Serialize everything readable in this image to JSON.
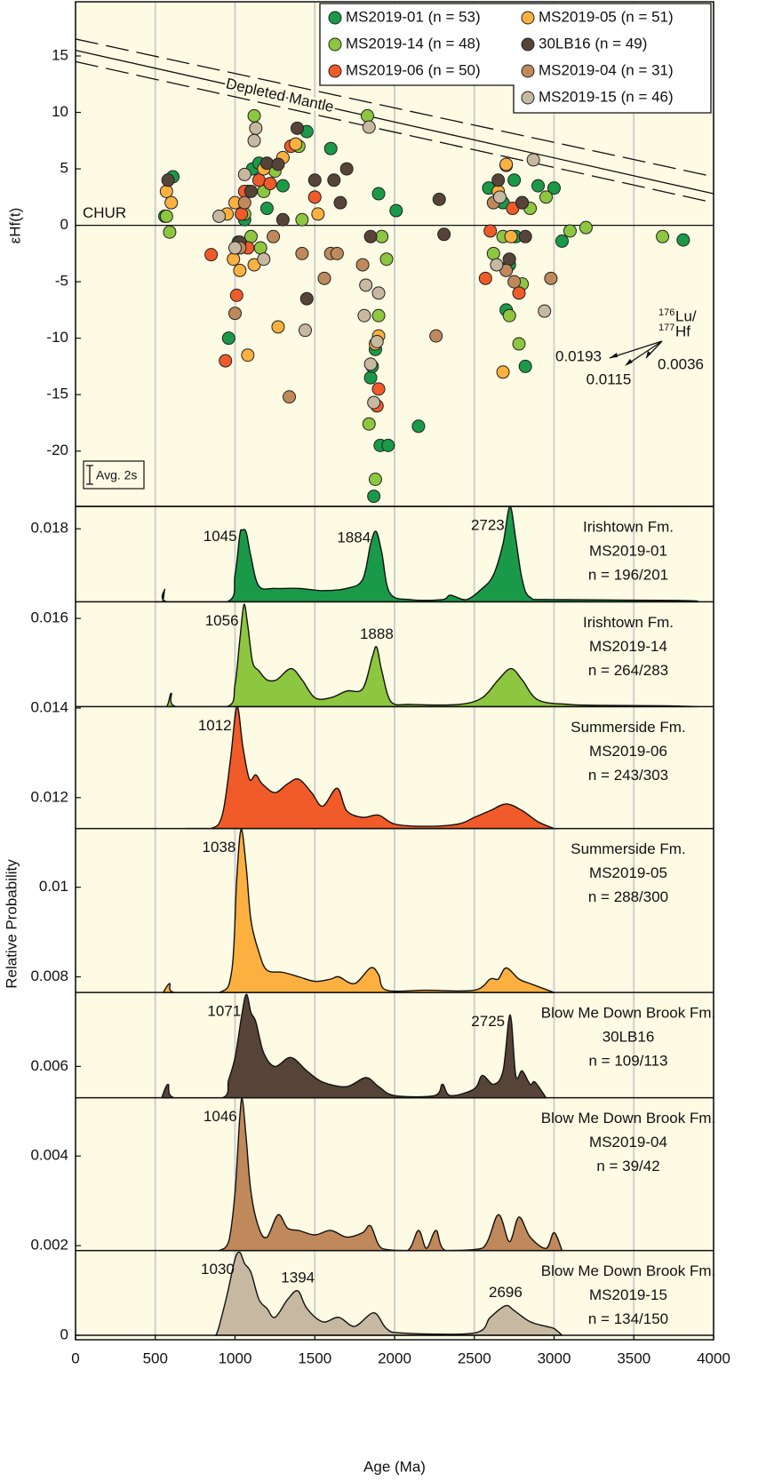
{
  "chart_data": [
    {
      "type": "scatter",
      "ylabel": "εHf(t)",
      "xlim": [
        0,
        4000
      ],
      "ylim": [
        -24.9,
        19.8
      ],
      "yticks": [
        -20,
        -15,
        -10,
        -5,
        0,
        5,
        10,
        15
      ],
      "series": [
        {
          "name": "MS2019-01 (n = 53)",
          "color": "#1a9a48",
          "x": [
            560,
            610,
            960,
            1020,
            1060,
            1080,
            1110,
            1150,
            1200,
            1300,
            1450,
            1600,
            1850,
            1860,
            1870,
            1880,
            1900,
            1910,
            1960,
            2010,
            2150,
            2590,
            2700,
            2720,
            2760,
            2820,
            2900,
            3000,
            3050,
            3810,
            2680,
            2750
          ],
          "values": [
            0.8,
            4.3,
            -10,
            -1.5,
            0.5,
            3,
            5,
            5.5,
            1.5,
            3.5,
            8.3,
            6.8,
            -13.5,
            -12.5,
            -24,
            -11,
            2.8,
            -19.5,
            -19.5,
            1.3,
            -17.8,
            3.3,
            -7.5,
            -3.5,
            -1,
            -12.5,
            3.5,
            3.3,
            -1.4,
            -1.3,
            2,
            4
          ]
        },
        {
          "name": "MS2019-14 (n = 48)",
          "color": "#8dc63f",
          "x": [
            570,
            590,
            1060,
            1100,
            1120,
            1160,
            1250,
            1400,
            1420,
            1830,
            1840,
            1880,
            1900,
            1920,
            1950,
            2620,
            2680,
            2720,
            2780,
            2800,
            2850,
            2950,
            3100,
            3200,
            3680,
            1180
          ],
          "values": [
            0.8,
            -0.6,
            1,
            -1,
            9.7,
            -2,
            4.8,
            7,
            0.5,
            9.7,
            -17.6,
            -22.5,
            -8,
            -1,
            -3,
            -2.5,
            -1,
            -8,
            -10.5,
            -5.2,
            1.5,
            2.5,
            -0.5,
            -0.2,
            -1,
            3
          ]
        },
        {
          "name": "MS2019-06 (n = 50)",
          "color": "#f15a29",
          "x": [
            850,
            940,
            1010,
            1040,
            1060,
            1150,
            1220,
            1350,
            1500,
            1890,
            1900,
            2570,
            2600,
            2700,
            2780,
            2740,
            1080
          ],
          "values": [
            -2.6,
            -12,
            -6.2,
            1,
            3,
            4,
            3.7,
            7,
            2.5,
            -16,
            -14.5,
            -4.7,
            -0.5,
            5.3,
            -6,
            1.5,
            -2
          ]
        },
        {
          "name": "MS2019-05 (n = 51)",
          "color": "#fbb040",
          "x": [
            570,
            600,
            950,
            990,
            1030,
            1080,
            1120,
            1180,
            1270,
            1300,
            1380,
            1520,
            1900,
            1880,
            2650,
            2680,
            2700,
            2730,
            2800,
            1000
          ],
          "values": [
            3,
            2,
            1,
            -3,
            -4,
            -11.5,
            -3.5,
            5,
            -9,
            6,
            7.2,
            1,
            -9.8,
            -10.5,
            3,
            -13,
            5.4,
            -1,
            2,
            2
          ]
        },
        {
          "name": "30LB16 (n = 49)",
          "color": "#574439",
          "x": [
            580,
            1030,
            1100,
            1200,
            1270,
            1390,
            1450,
            1500,
            1620,
            1700,
            1660,
            2280,
            2310,
            2650,
            2720,
            2800,
            2820,
            1850,
            1300
          ],
          "values": [
            4,
            -1.5,
            3,
            5.5,
            5.4,
            8.6,
            -6.5,
            4,
            4,
            5,
            2,
            2.3,
            -0.8,
            4,
            -3,
            2,
            -1,
            -1,
            0.5
          ]
        },
        {
          "name": "MS2019-04 (n = 31)",
          "color": "#c0895b",
          "x": [
            1000,
            1030,
            1060,
            1240,
            1340,
            1420,
            1560,
            1600,
            1640,
            1800,
            2260,
            2700,
            2750,
            2980,
            2620
          ],
          "values": [
            -7.8,
            -2,
            2,
            -1,
            -15.2,
            -2.5,
            -4.7,
            -2.5,
            -2.5,
            -3.5,
            -9.8,
            -4,
            -5,
            -4.7,
            2
          ]
        },
        {
          "name": "MS2019-15 (n = 46)",
          "color": "#c7b8a1",
          "x": [
            900,
            1000,
            1060,
            1130,
            1120,
            1180,
            1440,
            1820,
            1840,
            1810,
            1850,
            1870,
            1900,
            1890,
            2640,
            2870,
            2940,
            2660
          ],
          "values": [
            0.8,
            -2,
            4.5,
            8.6,
            7.5,
            -3,
            -9.3,
            -5.3,
            8.7,
            -8,
            -12.3,
            -15.7,
            -6,
            -10.3,
            -3.5,
            5.8,
            -7.6,
            2.5
          ]
        }
      ],
      "reference_lines": [
        {
          "label": "Depleted Mantle",
          "style": "solid",
          "x": [
            0,
            4000
          ],
          "values": [
            15.5,
            2.8
          ]
        },
        {
          "style": "dashed",
          "x": [
            0,
            4000
          ],
          "values": [
            16.5,
            4.3
          ]
        },
        {
          "style": "dashed",
          "x": [
            0,
            4000
          ],
          "values": [
            14.5,
            2.0
          ]
        },
        {
          "label": "CHUR",
          "style": "solid",
          "x": [
            0,
            4000
          ],
          "values": [
            0,
            0
          ]
        }
      ],
      "lu_hf_label": [
        "176",
        "Lu/",
        "177",
        "Hf"
      ],
      "lu_hf_ratios": [
        0.0193,
        0.0115,
        0.0036
      ],
      "error_bar_label": "Avg. 2s"
    },
    {
      "type": "area",
      "ylabel": "Relative Probability",
      "xlabel": "Age (Ma)",
      "xlim": [
        0,
        4000
      ],
      "xticks": [
        0,
        500,
        1000,
        1500,
        2000,
        2500,
        3000,
        3500,
        4000
      ],
      "ylim": [
        -0.0001,
        0.0185
      ],
      "yticks": [
        0,
        0.002,
        0.004,
        0.006,
        0.008,
        0.01,
        0.012,
        0.014,
        0.016,
        0.018
      ],
      "grid": true,
      "series": [
        {
          "name": "MS2019-01",
          "color": "#1a9a48",
          "baseline": 0.01637,
          "labels": [
            "Irishtown Fm.",
            "MS2019-01",
            "n = 196/201"
          ],
          "peaks": [
            1045,
            1884,
            2723
          ],
          "x": [
            500,
            545,
            560,
            575,
            950,
            1000,
            1030,
            1045,
            1070,
            1100,
            1150,
            1250,
            1400,
            1550,
            1700,
            1800,
            1850,
            1884,
            1920,
            1970,
            2100,
            2300,
            2350,
            2450,
            2550,
            2620,
            2680,
            2723,
            2760,
            2800,
            2850,
            3000,
            3800,
            3900
          ],
          "values": [
            0.01637,
            0.01637,
            0.01665,
            0.01637,
            0.01637,
            0.01697,
            0.01787,
            0.01797,
            0.01792,
            0.01737,
            0.01672,
            0.01667,
            0.01667,
            0.01662,
            0.01667,
            0.01687,
            0.01767,
            0.01794,
            0.01747,
            0.01657,
            0.01642,
            0.01642,
            0.01652,
            0.01642,
            0.01667,
            0.01697,
            0.01767,
            0.0185,
            0.01777,
            0.01687,
            0.01647,
            0.01642,
            0.0164,
            0.01637
          ]
        },
        {
          "name": "MS2019-14",
          "color": "#8dc63f",
          "baseline": 0.01403,
          "labels": [
            "Irishtown Fm.",
            "MS2019-14",
            "n = 264/283"
          ],
          "peaks": [
            1056,
            1888
          ],
          "x": [
            500,
            570,
            600,
            630,
            950,
            1000,
            1030,
            1056,
            1080,
            1110,
            1150,
            1200,
            1260,
            1350,
            1420,
            1500,
            1600,
            1700,
            1800,
            1860,
            1888,
            1920,
            1980,
            2100,
            2400,
            2550,
            2650,
            2730,
            2800,
            2900,
            3100,
            3300,
            3700,
            3900
          ],
          "values": [
            0.01403,
            0.01403,
            0.01433,
            0.01403,
            0.01403,
            0.01453,
            0.01553,
            0.01631,
            0.01583,
            0.01503,
            0.01483,
            0.01463,
            0.01463,
            0.01488,
            0.01463,
            0.01423,
            0.01423,
            0.01438,
            0.01443,
            0.01513,
            0.01536,
            0.01483,
            0.01413,
            0.01408,
            0.01408,
            0.01423,
            0.01463,
            0.01488,
            0.01463,
            0.01418,
            0.01408,
            0.01406,
            0.01405,
            0.01403
          ]
        },
        {
          "name": "MS2019-06",
          "color": "#f15a29",
          "baseline": 0.01131,
          "labels": [
            "Summerside Fm.",
            "MS2019-06",
            "n = 243/303"
          ],
          "peaks": [
            1012
          ],
          "x": [
            700,
            850,
            920,
            970,
            1012,
            1050,
            1090,
            1130,
            1170,
            1250,
            1330,
            1400,
            1480,
            1550,
            1640,
            1700,
            1800,
            1900,
            2000,
            2200,
            2400,
            2500,
            2600,
            2700,
            2800,
            2900,
            3000
          ],
          "values": [
            0.01131,
            0.01131,
            0.01161,
            0.01281,
            0.01403,
            0.01311,
            0.01241,
            0.01251,
            0.01231,
            0.01211,
            0.01231,
            0.01241,
            0.01211,
            0.01181,
            0.01221,
            0.01171,
            0.01156,
            0.01161,
            0.01141,
            0.01136,
            0.01141,
            0.01156,
            0.01171,
            0.01186,
            0.01171,
            0.01146,
            0.01131
          ]
        },
        {
          "name": "MS2019-05",
          "color": "#fbb040",
          "baseline": 0.00765,
          "labels": [
            "Summerside Fm.",
            "MS2019-05",
            "n = 288/300"
          ],
          "peaks": [
            1038
          ],
          "x": [
            550,
            590,
            620,
            900,
            980,
            1010,
            1038,
            1070,
            1100,
            1150,
            1200,
            1300,
            1400,
            1500,
            1600,
            1650,
            1750,
            1850,
            1900,
            1950,
            2200,
            2500,
            2600,
            2650,
            2700,
            2780,
            2850,
            3000
          ],
          "values": [
            0.00765,
            0.00785,
            0.00765,
            0.00765,
            0.00815,
            0.01015,
            0.01129,
            0.01045,
            0.00925,
            0.00855,
            0.00815,
            0.0081,
            0.008,
            0.0079,
            0.00795,
            0.008,
            0.00785,
            0.0082,
            0.00805,
            0.0077,
            0.0077,
            0.0077,
            0.00795,
            0.00795,
            0.0082,
            0.00795,
            0.00785,
            0.00765
          ]
        },
        {
          "name": "30LB16",
          "color": "#574439",
          "baseline": 0.0053,
          "labels": [
            "Blow Me Down Brook Fm.",
            "30LB16",
            "n = 109/113"
          ],
          "peaks": [
            1071,
            2725
          ],
          "x": [
            540,
            580,
            620,
            920,
            960,
            1000,
            1040,
            1071,
            1100,
            1130,
            1180,
            1250,
            1350,
            1450,
            1550,
            1700,
            1820,
            1900,
            2000,
            2250,
            2300,
            2350,
            2500,
            2550,
            2620,
            2680,
            2725,
            2760,
            2800,
            2850,
            2880,
            2950
          ],
          "values": [
            0.0053,
            0.0056,
            0.0053,
            0.0053,
            0.0057,
            0.0062,
            0.0071,
            0.00761,
            0.0072,
            0.007,
            0.0063,
            0.006,
            0.0062,
            0.0059,
            0.00565,
            0.00555,
            0.00575,
            0.00555,
            0.00535,
            0.00535,
            0.0056,
            0.00535,
            0.0055,
            0.0058,
            0.0056,
            0.0059,
            0.00715,
            0.0058,
            0.0059,
            0.0056,
            0.00565,
            0.0053
          ]
        },
        {
          "name": "MS2019-04",
          "color": "#c0895b",
          "baseline": 0.00189,
          "labels": [
            "Blow Me Down Brook Fm.",
            "MS2019-04",
            "n = 39/42"
          ],
          "peaks": [
            1046
          ],
          "x": [
            900,
            960,
            1000,
            1030,
            1046,
            1070,
            1100,
            1150,
            1200,
            1270,
            1330,
            1400,
            1500,
            1600,
            1700,
            1800,
            1850,
            1920,
            2080,
            2150,
            2200,
            2260,
            2320,
            2550,
            2650,
            2720,
            2780,
            2850,
            2950,
            3000,
            3050
          ],
          "values": [
            0.00189,
            0.00209,
            0.00319,
            0.00489,
            0.00526,
            0.00439,
            0.00319,
            0.00239,
            0.00219,
            0.00269,
            0.00239,
            0.00234,
            0.00224,
            0.00234,
            0.00219,
            0.00229,
            0.00244,
            0.00194,
            0.00189,
            0.00234,
            0.00194,
            0.00234,
            0.00189,
            0.00194,
            0.00269,
            0.00209,
            0.00264,
            0.00219,
            0.00194,
            0.00229,
            0.00189
          ]
        },
        {
          "name": "MS2019-15",
          "color": "#c7b8a1",
          "baseline": 0,
          "labels": [
            "Blow Me Down Brook Fm.",
            "MS2019-15",
            "n = 134/150"
          ],
          "peaks": [
            1030,
            1394,
            2696
          ],
          "x": [
            880,
            900,
            950,
            1000,
            1030,
            1060,
            1100,
            1150,
            1200,
            1250,
            1330,
            1394,
            1450,
            1550,
            1650,
            1750,
            1870,
            1950,
            2050,
            2500,
            2600,
            2696,
            2750,
            2850,
            2950,
            3000,
            3050
          ],
          "values": [
            0,
            0.0002,
            0.0009,
            0.0017,
            0.00185,
            0.0016,
            0.0014,
            0.0008,
            0.0006,
            0.0004,
            0.0008,
            0.00099,
            0.0006,
            0.0003,
            0.0004,
            0.0002,
            0.0005,
            0.00015,
            5e-05,
            5e-05,
            0.0004,
            0.00066,
            0.00055,
            0.0003,
            0.0002,
            0.00015,
            0
          ]
        }
      ]
    }
  ]
}
